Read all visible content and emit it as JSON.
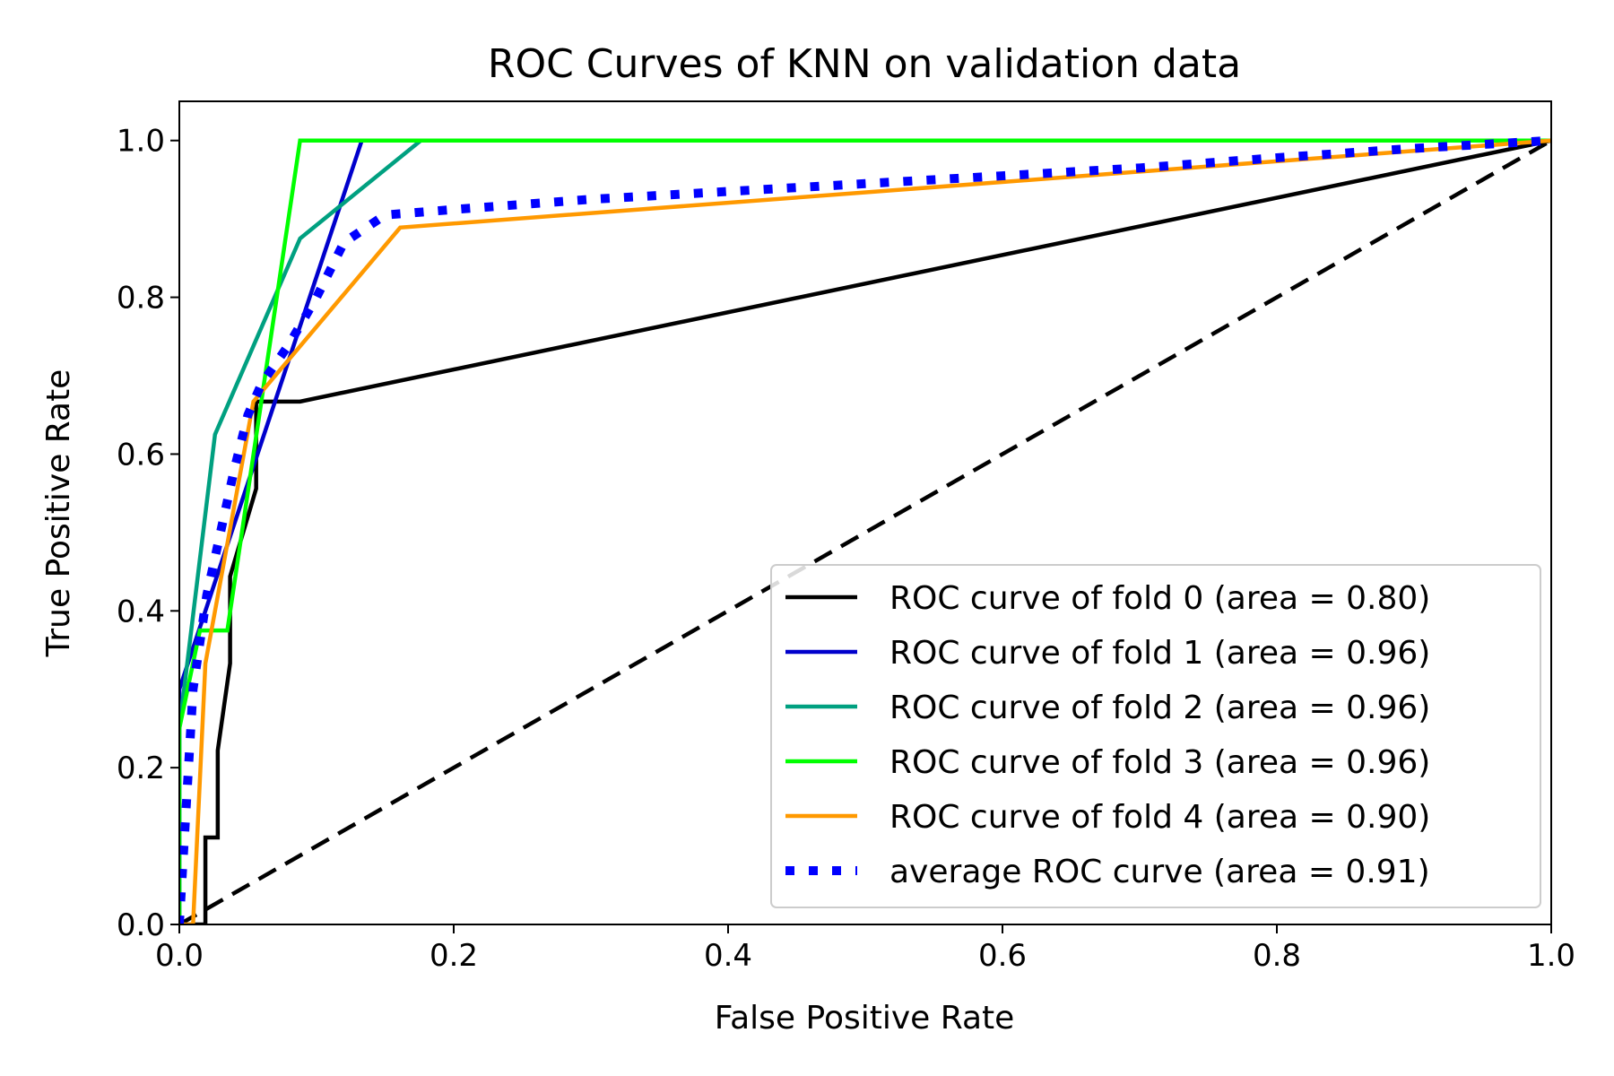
{
  "chart_data": {
    "type": "line",
    "title": "ROC Curves of KNN on validation data",
    "xlabel": "False Positive Rate",
    "ylabel": "True Positive Rate",
    "xlim": [
      0.0,
      1.0
    ],
    "ylim": [
      0.0,
      1.05
    ],
    "x_ticks": [
      "0.0",
      "0.2",
      "0.4",
      "0.6",
      "0.8",
      "1.0"
    ],
    "x_tick_values": [
      0.0,
      0.2,
      0.4,
      0.6,
      0.8,
      1.0
    ],
    "y_ticks": [
      "0.0",
      "0.2",
      "0.4",
      "0.6",
      "0.8",
      "1.0"
    ],
    "y_tick_values": [
      0.0,
      0.2,
      0.4,
      0.6,
      0.8,
      1.0
    ],
    "grid": false,
    "legend_position": "lower-right",
    "series": [
      {
        "name": "ROC curve of fold 0 (area = 0.80)",
        "color": "#000000",
        "style": "solid",
        "x": [
          0.0,
          0.019,
          0.019,
          0.028,
          0.028,
          0.037,
          0.037,
          0.056,
          0.056,
          0.088,
          1.0
        ],
        "y": [
          0.0,
          0.0,
          0.111,
          0.111,
          0.222,
          0.333,
          0.444,
          0.556,
          0.667,
          0.667,
          1.0
        ]
      },
      {
        "name": "ROC curve of fold 1 (area = 0.96)",
        "color": "#0000cc",
        "style": "solid",
        "x": [
          0.0,
          0.0,
          0.133,
          1.0
        ],
        "y": [
          0.0,
          0.3,
          1.0,
          1.0
        ]
      },
      {
        "name": "ROC curve of fold 2 (area = 0.96)",
        "color": "#00a080",
        "style": "solid",
        "x": [
          0.0,
          0.0,
          0.026,
          0.088,
          0.176,
          1.0
        ],
        "y": [
          0.0,
          0.25,
          0.625,
          0.875,
          1.0,
          1.0
        ]
      },
      {
        "name": "ROC curve of fold 3 (area = 0.96)",
        "color": "#00ff00",
        "style": "solid",
        "x": [
          0.0,
          0.0,
          0.015,
          0.035,
          0.088,
          1.0
        ],
        "y": [
          0.0,
          0.25,
          0.375,
          0.375,
          1.0,
          1.0
        ]
      },
      {
        "name": "ROC curve of fold 4 (area = 0.90)",
        "color": "#ff9900",
        "style": "solid",
        "x": [
          0.0,
          0.01,
          0.019,
          0.054,
          0.161,
          1.0
        ],
        "y": [
          0.0,
          0.0,
          0.333,
          0.667,
          0.889,
          1.0
        ]
      },
      {
        "name": "average ROC curve (area = 0.91)",
        "color": "#0000ff",
        "style": "dotted",
        "x": [
          0.0,
          0.01,
          0.02,
          0.03,
          0.04,
          0.05,
          0.06,
          0.08,
          0.1,
          0.12,
          0.15,
          0.2,
          0.3,
          0.4,
          0.5,
          0.6,
          0.7,
          0.8,
          0.9,
          1.0
        ],
        "y": [
          0.0,
          0.3,
          0.42,
          0.5,
          0.58,
          0.65,
          0.69,
          0.74,
          0.8,
          0.87,
          0.905,
          0.912,
          0.925,
          0.935,
          0.945,
          0.955,
          0.965,
          0.978,
          0.99,
          1.0
        ]
      },
      {
        "name": "",
        "color": "#000000",
        "style": "dashed",
        "x": [
          0.0,
          1.0
        ],
        "y": [
          0.0,
          1.0
        ]
      }
    ]
  }
}
